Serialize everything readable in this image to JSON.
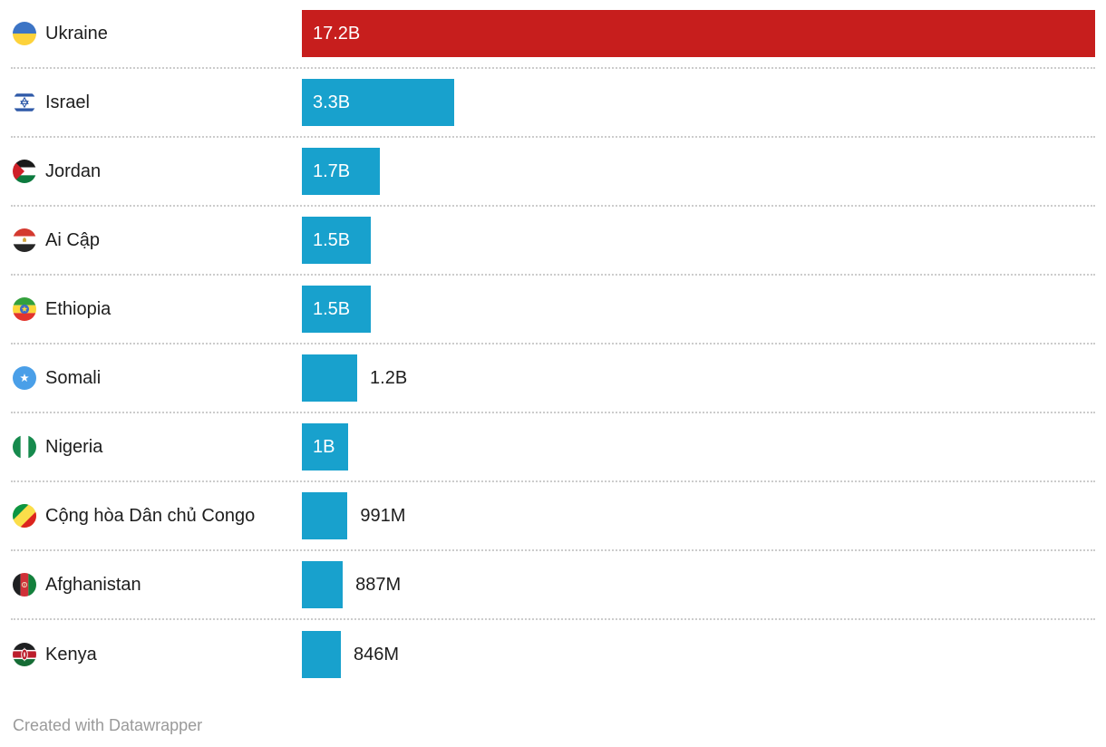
{
  "chart_data": {
    "type": "bar",
    "orientation": "horizontal",
    "max_value": 17.2,
    "value_unit": "billions",
    "legend": null,
    "grid": false,
    "colors": {
      "bar_highlight": "#c71e1d",
      "bar_default": "#18a1cd",
      "label_text": "#1d1d1d",
      "value_text_inside": "#ffffff",
      "value_text_outside": "#1d1d1d",
      "separator": "#cccccc"
    },
    "categories": [
      "Ukraine",
      "Israel",
      "Jordan",
      "Ai Cập",
      "Ethiopia",
      "Somali",
      "Nigeria",
      "Cộng hòa Dân chủ Congo",
      "Afghanistan",
      "Kenya"
    ],
    "values": [
      17.2,
      3.3,
      1.7,
      1.5,
      1.5,
      1.2,
      1,
      0.991,
      0.887,
      0.846
    ],
    "rows": [
      {
        "label": "Ukraine",
        "flag_icon": "ukraine-flag-icon",
        "value": 17.2,
        "value_label": "17.2B",
        "color": "#c71e1d",
        "label_position": "inside"
      },
      {
        "label": "Israel",
        "flag_icon": "israel-flag-icon",
        "value": 3.3,
        "value_label": "3.3B",
        "color": "#18a1cd",
        "label_position": "inside"
      },
      {
        "label": "Jordan",
        "flag_icon": "jordan-flag-icon",
        "value": 1.7,
        "value_label": "1.7B",
        "color": "#18a1cd",
        "label_position": "inside"
      },
      {
        "label": "Ai Cập",
        "flag_icon": "egypt-flag-icon",
        "value": 1.5,
        "value_label": "1.5B",
        "color": "#18a1cd",
        "label_position": "inside"
      },
      {
        "label": "Ethiopia",
        "flag_icon": "ethiopia-flag-icon",
        "value": 1.5,
        "value_label": "1.5B",
        "color": "#18a1cd",
        "label_position": "inside"
      },
      {
        "label": "Somali",
        "flag_icon": "somalia-flag-icon",
        "value": 1.2,
        "value_label": "1.2B",
        "color": "#18a1cd",
        "label_position": "outside"
      },
      {
        "label": "Nigeria",
        "flag_icon": "nigeria-flag-icon",
        "value": 1,
        "value_label": "1B",
        "color": "#18a1cd",
        "label_position": "inside"
      },
      {
        "label": "Cộng hòa Dân chủ Congo",
        "flag_icon": "congo-flag-icon",
        "value": 0.991,
        "value_label": "991M",
        "color": "#18a1cd",
        "label_position": "outside"
      },
      {
        "label": "Afghanistan",
        "flag_icon": "afghanistan-flag-icon",
        "value": 0.887,
        "value_label": "887M",
        "color": "#18a1cd",
        "label_position": "outside"
      },
      {
        "label": "Kenya",
        "flag_icon": "kenya-flag-icon",
        "value": 0.846,
        "value_label": "846M",
        "color": "#18a1cd",
        "label_position": "outside"
      }
    ]
  },
  "footer": {
    "credit": "Created with Datawrapper"
  }
}
